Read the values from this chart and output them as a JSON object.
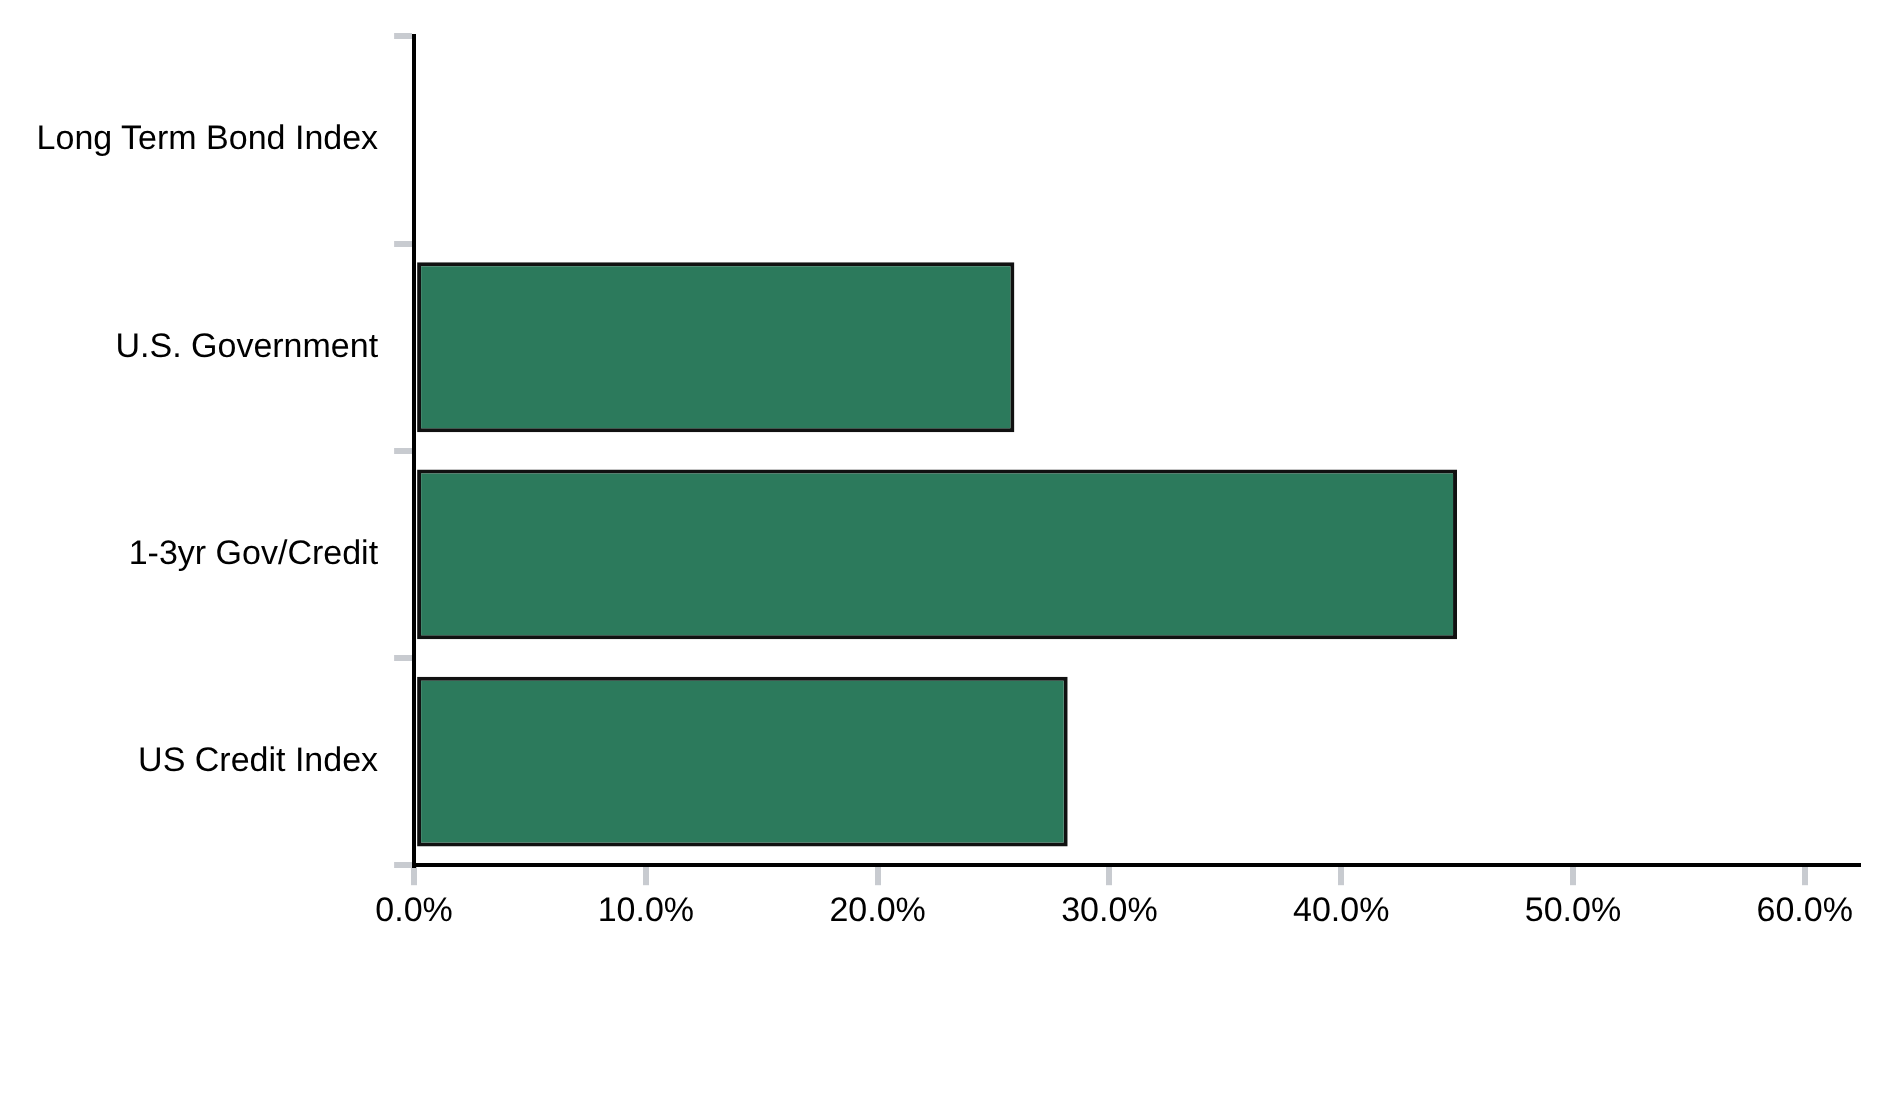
{
  "chart_data": {
    "type": "bar",
    "orientation": "horizontal",
    "categories": [
      "Long Term Bond Index",
      "U.S. Government",
      "1-3yr Gov/Credit",
      "US Credit Index"
    ],
    "values": [
      0,
      25.9,
      45.0,
      28.2
    ],
    "color": "#2c7a5c",
    "xlim": [
      0,
      62.3
    ],
    "xticks": [
      {
        "value": 0,
        "label": "0.0%"
      },
      {
        "value": 10,
        "label": "10.0%"
      },
      {
        "value": 20,
        "label": "20.0%"
      },
      {
        "value": 30,
        "label": "30.0%"
      },
      {
        "value": 40,
        "label": "40.0%"
      },
      {
        "value": 50,
        "label": "50.0%"
      },
      {
        "value": 60,
        "label": "60.0%"
      }
    ],
    "grid": false,
    "legend": false
  }
}
